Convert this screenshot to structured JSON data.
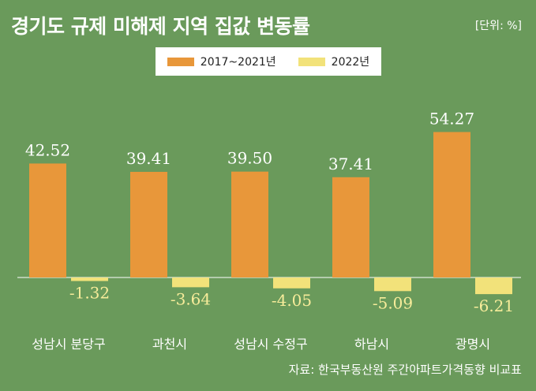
{
  "title": "경기도 규제 미해제 지역 집값 변동률",
  "unit": "[단위: %]",
  "source": "자료: 한국부동산원 주간아파트가격동향 비교표",
  "colors": {
    "background": "#6a9a5b",
    "series1": "#e8973a",
    "series2": "#f2e27a",
    "axis": "#ffffff"
  },
  "chart_data": {
    "type": "bar",
    "title": "경기도 규제 미해제 지역 집값 변동률",
    "xlabel": "",
    "ylabel": "",
    "unit": "%",
    "categories": [
      "성남시 분당구",
      "과천시",
      "성남시 수정구",
      "하남시",
      "광명시"
    ],
    "series": [
      {
        "name": "2017~2021년",
        "values": [
          42.52,
          39.41,
          39.5,
          37.41,
          54.27
        ],
        "labels": [
          "42.52",
          "39.41",
          "39.50",
          "37.41",
          "54.27"
        ]
      },
      {
        "name": "2022년",
        "values": [
          -1.32,
          -3.64,
          -4.05,
          -5.09,
          -6.21
        ],
        "labels": [
          "-1.32",
          "-3.64",
          "-4.05",
          "-5.09",
          "-6.21"
        ]
      }
    ],
    "legend_position": "top-center",
    "grid": false
  }
}
